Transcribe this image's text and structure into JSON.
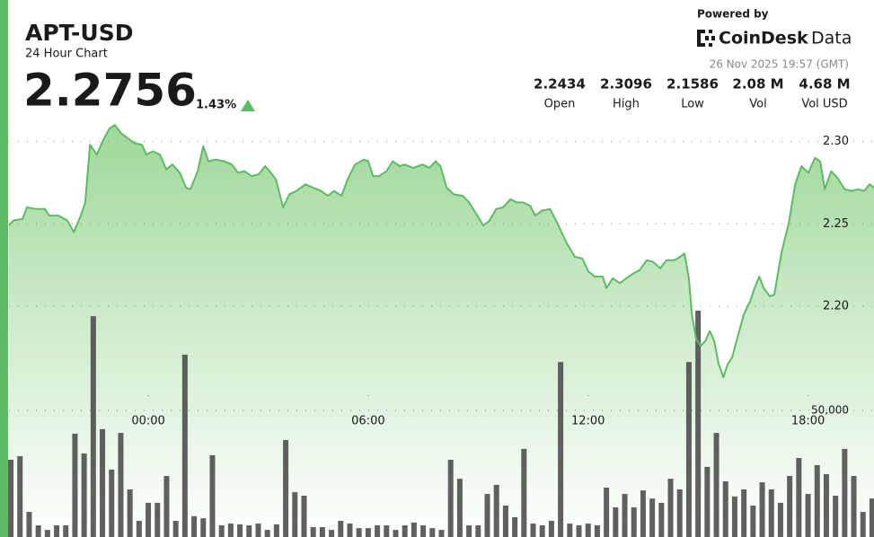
{
  "header": {
    "powered_by": "Powered by",
    "brand": [
      "CoinDesk",
      "Data"
    ],
    "timestamp": "26 Nov 2025 19:57 (GMT)",
    "price": "2.2756",
    "change": "1.43%",
    "stats": [
      {
        "value": "2.2434",
        "label": "Open"
      },
      {
        "value": "2.3096",
        "label": "High"
      },
      {
        "value": "2.1586",
        "label": "Low"
      },
      {
        "value": "2.08 M",
        "label": "Vol"
      },
      {
        "value": "4.68 M",
        "label": "Vol USD"
      }
    ]
  },
  "chart_data": {
    "type": "line",
    "title": "APT-USD",
    "subtitle": "24 Hour Chart",
    "xlim": [
      -3.8,
      19.8
    ],
    "xticks": [
      {
        "value": 0,
        "label": "00:00"
      },
      {
        "value": 6,
        "label": "06:00"
      },
      {
        "value": 12,
        "label": "12:00"
      },
      {
        "value": 18,
        "label": "18:00"
      }
    ],
    "ylim": [
      2.06,
      2.315
    ],
    "yticks": [
      {
        "value": 2.2,
        "label": "2.20"
      },
      2.25,
      {
        "value": 2.3,
        "label": "2.30"
      }
    ],
    "y2lim": [
      0,
      100000
    ],
    "y2ticks": [
      {
        "value": 50000,
        "label": "50,000"
      }
    ],
    "grid": true,
    "price": {
      "color": "#5dbb63",
      "x": [
        -3.8,
        -3.68,
        -3.43,
        -3.31,
        -3.06,
        -2.82,
        -2.7,
        -2.45,
        -2.21,
        -2.03,
        -1.84,
        -1.72,
        -1.59,
        -1.4,
        -1.23,
        -1.05,
        -0.91,
        -0.74,
        -0.56,
        -0.37,
        -0.17,
        -0.05,
        0.12,
        0.32,
        0.49,
        0.66,
        0.86,
        1.03,
        1.15,
        1.35,
        1.5,
        1.64,
        1.84,
        2.08,
        2.28,
        2.45,
        2.62,
        2.82,
        3.01,
        3.19,
        3.31,
        3.48,
        3.68,
        3.85,
        4.04,
        4.29,
        4.49,
        4.71,
        4.9,
        5.07,
        5.27,
        5.44,
        5.64,
        5.88,
        6.0,
        6.13,
        6.3,
        6.5,
        6.67,
        6.86,
        6.99,
        7.23,
        7.48,
        7.67,
        7.84,
        7.97,
        8.14,
        8.33,
        8.58,
        8.75,
        8.95,
        9.14,
        9.31,
        9.49,
        9.68,
        9.88,
        10.05,
        10.22,
        10.42,
        10.56,
        10.74,
        10.96,
        11.15,
        11.4,
        11.64,
        11.84,
        12.01,
        12.18,
        12.4,
        12.5,
        12.67,
        12.87,
        13.04,
        13.24,
        13.41,
        13.6,
        13.77,
        13.97,
        14.14,
        14.36,
        14.51,
        14.63,
        14.75,
        14.83,
        14.95,
        15.07,
        15.2,
        15.32,
        15.44,
        15.56,
        15.69,
        15.81,
        15.93,
        16.05,
        16.25,
        16.42,
        16.54,
        16.67,
        16.79,
        16.96,
        17.08,
        17.28,
        17.48,
        17.65,
        17.82,
        18.01,
        18.19,
        18.33,
        18.46,
        18.63,
        18.8,
        19.0,
        19.19,
        19.36,
        19.53,
        19.68,
        19.8
      ],
      "values": [
        2.249,
        2.252,
        2.253,
        2.26,
        2.259,
        2.259,
        2.255,
        2.255,
        2.252,
        2.245,
        2.255,
        2.263,
        2.298,
        2.292,
        2.301,
        2.308,
        2.31,
        2.305,
        2.302,
        2.299,
        2.298,
        2.292,
        2.294,
        2.292,
        2.283,
        2.286,
        2.281,
        2.272,
        2.271,
        2.282,
        2.297,
        2.288,
        2.289,
        2.288,
        2.286,
        2.281,
        2.282,
        2.279,
        2.28,
        2.285,
        2.282,
        2.277,
        2.26,
        2.268,
        2.27,
        2.274,
        2.272,
        2.27,
        2.267,
        2.27,
        2.267,
        2.277,
        2.286,
        2.289,
        2.288,
        2.279,
        2.279,
        2.282,
        2.288,
        2.285,
        2.286,
        2.284,
        2.286,
        2.284,
        2.288,
        2.285,
        2.272,
        2.268,
        2.267,
        2.263,
        2.256,
        2.249,
        2.252,
        2.259,
        2.26,
        2.265,
        2.263,
        2.263,
        2.261,
        2.255,
        2.258,
        2.259,
        2.251,
        2.239,
        2.23,
        2.229,
        2.221,
        2.218,
        2.218,
        2.211,
        2.217,
        2.214,
        2.217,
        2.22,
        2.222,
        2.228,
        2.227,
        2.223,
        2.228,
        2.228,
        2.23,
        2.232,
        2.217,
        2.195,
        2.18,
        2.176,
        2.179,
        2.185,
        2.179,
        2.165,
        2.157,
        2.165,
        2.169,
        2.179,
        2.195,
        2.203,
        2.211,
        2.218,
        2.211,
        2.206,
        2.207,
        2.233,
        2.251,
        2.274,
        2.285,
        2.281,
        2.29,
        2.288,
        2.271,
        2.282,
        2.278,
        2.271,
        2.27,
        2.271,
        2.27,
        2.274,
        2.272
      ]
    },
    "volume": {
      "color": "#4a4a4a",
      "axis": "y2",
      "x": [
        -3.75,
        -3.5,
        -3.25,
        -3.0,
        -2.75,
        -2.5,
        -2.25,
        -2.0,
        -1.75,
        -1.5,
        -1.25,
        -1.0,
        -0.75,
        -0.5,
        -0.25,
        0,
        0.25,
        0.5,
        0.75,
        1.0,
        1.25,
        1.5,
        1.75,
        2.0,
        2.25,
        2.5,
        2.75,
        3.0,
        3.25,
        3.5,
        3.75,
        4.0,
        4.25,
        4.5,
        4.75,
        5.0,
        5.25,
        5.5,
        5.75,
        6.0,
        6.25,
        6.5,
        6.75,
        7.0,
        7.25,
        7.5,
        7.75,
        8.0,
        8.25,
        8.5,
        8.75,
        9.0,
        9.25,
        9.5,
        9.75,
        10.0,
        10.25,
        10.5,
        10.75,
        11.0,
        11.25,
        11.5,
        11.75,
        12.0,
        12.25,
        12.5,
        12.75,
        13.0,
        13.25,
        13.5,
        13.75,
        14.0,
        14.25,
        14.5,
        14.75,
        15.0,
        15.25,
        15.5,
        15.75,
        16.0,
        16.25,
        16.5,
        16.75,
        17.0,
        17.25,
        17.5,
        17.75,
        18.0,
        18.25,
        18.5,
        18.75,
        19.0,
        19.25,
        19.5,
        19.75
      ],
      "values": [
        30500,
        31900,
        9900,
        4600,
        2800,
        4600,
        4600,
        40800,
        33000,
        87200,
        42600,
        26600,
        41100,
        18800,
        6400,
        13500,
        13500,
        24100,
        6400,
        72000,
        8200,
        7400,
        32300,
        4600,
        5300,
        5000,
        4600,
        5300,
        2800,
        5000,
        38300,
        17700,
        16300,
        3900,
        3900,
        2800,
        6400,
        5300,
        3500,
        3500,
        4600,
        4600,
        2800,
        4600,
        5700,
        4600,
        3500,
        2800,
        30500,
        23000,
        4600,
        4600,
        17000,
        20600,
        12400,
        7800,
        34800,
        5300,
        4600,
        6400,
        69100,
        5300,
        4600,
        5300,
        4600,
        19500,
        11700,
        17000,
        11700,
        18400,
        15200,
        13500,
        23000,
        18800,
        69100,
        89400,
        27700,
        41100,
        22000,
        16000,
        18800,
        12400,
        21600,
        18800,
        13500,
        24100,
        31200,
        17000,
        28400,
        24800,
        16300,
        34800,
        24100,
        9900,
        15200
      ]
    }
  }
}
